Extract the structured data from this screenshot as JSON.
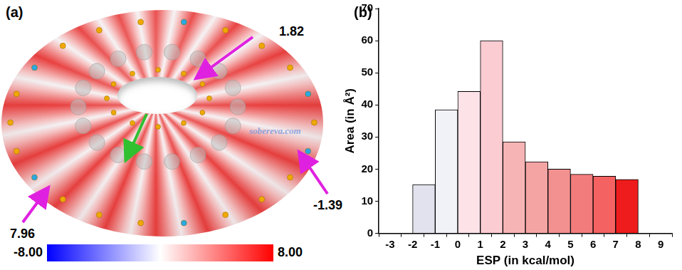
{
  "panel_a": {
    "label": "(a)",
    "annotations": [
      {
        "label": "1.82"
      },
      {
        "label": "-1.39"
      },
      {
        "label": "7.96"
      }
    ],
    "watermark": "sobereva.com",
    "colorbar": {
      "ticks": [
        {
          "value": -8,
          "label": "-8.00"
        },
        {
          "value": 8,
          "label": "8.00"
        }
      ],
      "colors": [
        "#0000ff",
        "#ffffff",
        "#ff0000"
      ]
    }
  },
  "chart_data": {
    "type": "bar",
    "title": "(b)",
    "x_label": "ESP (in kcal/mol)",
    "y_label": "Area (in Å²)",
    "bins": [
      -2,
      -1,
      0,
      1,
      2,
      3,
      4,
      5,
      6,
      7,
      8
    ],
    "values": [
      15.2,
      38.5,
      44.2,
      60.0,
      28.5,
      22.3,
      20.0,
      18.4,
      17.8,
      16.8
    ],
    "colors": [
      "#e2e2ee",
      "#f1f1f8",
      "#fde2e8",
      "#fcccd3",
      "#f7b4b4",
      "#f5a4a4",
      "#f39090",
      "#f27c7c",
      "#f46262",
      "#ee1c1c"
    ],
    "xlim": [
      -3,
      9
    ],
    "xticks": [
      -3,
      -2,
      -1,
      0,
      1,
      2,
      3,
      4,
      5,
      6,
      7,
      8,
      9
    ],
    "ylim": [
      0,
      70
    ],
    "yticks": [
      0,
      10,
      20,
      30,
      40,
      50,
      60,
      70
    ],
    "grid": false
  }
}
